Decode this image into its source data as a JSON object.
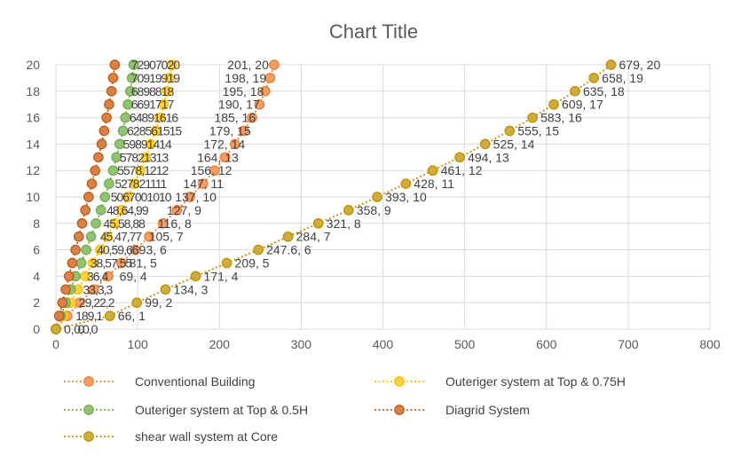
{
  "chart_data": {
    "type": "scatter",
    "title": "Chart Title",
    "xlim": [
      0,
      800
    ],
    "ylim": [
      0,
      20
    ],
    "x_ticks": [
      "0",
      "100",
      "200",
      "300",
      "400",
      "500",
      "600",
      "700",
      "800"
    ],
    "y_ticks": [
      "0",
      "2",
      "4",
      "6",
      "8",
      "10",
      "12",
      "14",
      "16",
      "18",
      "20"
    ],
    "grid": "vertical and horizontal major gridlines",
    "legend_position": "bottom",
    "series": [
      {
        "name": "Conventional Building",
        "color": "#ED7D31",
        "line_style": "dotted",
        "data_labels": false,
        "x": [
          0,
          14,
          29,
          46,
          64,
          80,
          97,
          114,
          131,
          148,
          164,
          180,
          194,
          207,
          219,
          230,
          240,
          249,
          256,
          262,
          267
        ],
        "y": [
          0,
          1,
          2,
          3,
          4,
          5,
          6,
          7,
          8,
          9,
          10,
          11,
          12,
          13,
          14,
          15,
          16,
          17,
          18,
          19,
          20
        ]
      },
      {
        "name": "Outeriger system at Top & 0.75H",
        "color": "#FFC000",
        "line_style": "dotted",
        "data_labels": false,
        "x": [
          0,
          9,
          18,
          27,
          36,
          45,
          54,
          63,
          72,
          80,
          88,
          96,
          103,
          110,
          116,
          122,
          127,
          132,
          136,
          139,
          142
        ],
        "y": [
          0,
          1,
          2,
          3,
          4,
          5,
          6,
          7,
          8,
          9,
          10,
          11,
          12,
          13,
          14,
          15,
          16,
          17,
          18,
          19,
          20
        ]
      },
      {
        "name": "Outeriger system at Top & 0.5H",
        "color": "#70AD47",
        "line_style": "dotted",
        "data_labels": false,
        "x": [
          0,
          6,
          12,
          18,
          24,
          31,
          37,
          43,
          49,
          55,
          60,
          65,
          70,
          74,
          78,
          82,
          85,
          88,
          91,
          93,
          95
        ],
        "y": [
          0,
          1,
          2,
          3,
          4,
          5,
          6,
          7,
          8,
          9,
          10,
          11,
          12,
          13,
          14,
          15,
          16,
          17,
          18,
          19,
          20
        ]
      },
      {
        "name": "Diagrid System",
        "color": "#C55A11",
        "line_style": "dotted",
        "data_labels": false,
        "x": [
          0,
          4,
          8,
          12,
          16,
          20,
          24,
          28,
          32,
          36,
          40,
          44,
          48,
          52,
          56,
          59,
          62,
          65,
          68,
          70,
          72
        ],
        "y": [
          0,
          1,
          2,
          3,
          4,
          5,
          6,
          7,
          8,
          9,
          10,
          11,
          12,
          13,
          14,
          15,
          16,
          17,
          18,
          19,
          20
        ]
      },
      {
        "name": "shear wall system at Core",
        "color": "#BF9000",
        "line_style": "dotted",
        "data_labels": true,
        "x": [
          0,
          66,
          99,
          134,
          171,
          209,
          247.6,
          284,
          321,
          358,
          393,
          428,
          461,
          494,
          525,
          555,
          583,
          609,
          635,
          658,
          679
        ],
        "y": [
          0,
          1,
          2,
          3,
          4,
          5,
          6,
          7,
          8,
          9,
          10,
          11,
          12,
          13,
          14,
          15,
          16,
          17,
          18,
          19,
          20
        ],
        "labels": [
          "0, 0",
          "66, 1",
          "99, 2",
          "134, 3",
          "171, 4",
          "209, 5",
          "247.6, 6",
          "284, 7",
          "321, 8",
          "358, 9",
          "393, 10",
          "428, 11",
          "461, 12",
          "494, 13",
          "525, 14",
          "555, 15",
          "583, 16",
          "609, 17",
          "635, 18",
          "658, 19",
          "679, 20"
        ]
      }
    ],
    "extra_labels": [
      {
        "text": "201, 20",
        "x": 201,
        "y": 20
      },
      {
        "text": "198, 19",
        "x": 198,
        "y": 19
      },
      {
        "text": "195, 18",
        "x": 195,
        "y": 18
      },
      {
        "text": "190, 17",
        "x": 190,
        "y": 17
      },
      {
        "text": "185, 16",
        "x": 185,
        "y": 16
      },
      {
        "text": "179, 15",
        "x": 179,
        "y": 15
      },
      {
        "text": "172, 14",
        "x": 172,
        "y": 14
      },
      {
        "text": "164, 13",
        "x": 164,
        "y": 13
      },
      {
        "text": "156, 12",
        "x": 156,
        "y": 12
      },
      {
        "text": "147, 11",
        "x": 147,
        "y": 11
      },
      {
        "text": "137, 10",
        "x": 137,
        "y": 10
      },
      {
        "text": "127, 9",
        "x": 127,
        "y": 9
      },
      {
        "text": "116, 8",
        "x": 116,
        "y": 8
      },
      {
        "text": "105, 7",
        "x": 105,
        "y": 7
      },
      {
        "text": "93, 6",
        "x": 93,
        "y": 6
      },
      {
        "text": "81, 5",
        "x": 81,
        "y": 5
      },
      {
        "text": "69, 4",
        "x": 69,
        "y": 4
      }
    ],
    "overlapped_label_clusters": [
      {
        "text": "72907020",
        "x": 92,
        "y": 20
      },
      {
        "text": "70919919",
        "x": 92,
        "y": 19
      },
      {
        "text": "6898818",
        "x": 92,
        "y": 18
      },
      {
        "text": "6691717",
        "x": 92,
        "y": 17
      },
      {
        "text": "64891616",
        "x": 90,
        "y": 16
      },
      {
        "text": "628561515",
        "x": 87,
        "y": 15
      },
      {
        "text": "59891414",
        "x": 82,
        "y": 14
      },
      {
        "text": "57821313",
        "x": 78,
        "y": 13
      },
      {
        "text": "5578,1212",
        "x": 75,
        "y": 12
      },
      {
        "text": "527821111",
        "x": 72,
        "y": 11
      },
      {
        "text": "5067001010",
        "x": 67,
        "y": 10
      },
      {
        "text": "48,64,99",
        "x": 62,
        "y": 9
      },
      {
        "text": "45,58,88",
        "x": 58,
        "y": 8
      },
      {
        "text": "45,47,77",
        "x": 54,
        "y": 7
      },
      {
        "text": "40,59,66",
        "x": 50,
        "y": 6
      },
      {
        "text": "38,57,55",
        "x": 42,
        "y": 5
      },
      {
        "text": "36,4",
        "x": 38,
        "y": 4
      },
      {
        "text": "33,3,3",
        "x": 33,
        "y": 3
      },
      {
        "text": "29,22,2",
        "x": 28,
        "y": 2
      },
      {
        "text": "189,1",
        "x": 24,
        "y": 1
      },
      {
        "text": "0,0,0",
        "x": 22,
        "y": 0
      }
    ]
  }
}
